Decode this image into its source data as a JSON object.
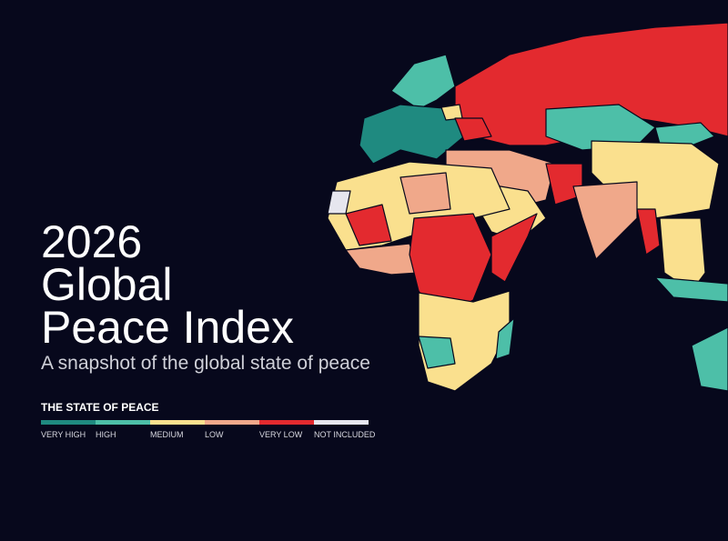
{
  "title": [
    "2026",
    "Global",
    "Peace Index"
  ],
  "subtitle": "A snapshot of the global state of peace",
  "legend": {
    "title": "THE STATE OF PEACE",
    "items": [
      {
        "label": "VERY HIGH",
        "color": "#1f8a80"
      },
      {
        "label": "HIGH",
        "color": "#4dbfa8"
      },
      {
        "label": "MEDIUM",
        "color": "#fae08e"
      },
      {
        "label": "LOW",
        "color": "#f0a88a"
      },
      {
        "label": "VERY LOW",
        "color": "#e32a2f"
      },
      {
        "label": "NOT INCLUDED",
        "color": "#e6e6ee"
      }
    ]
  }
}
